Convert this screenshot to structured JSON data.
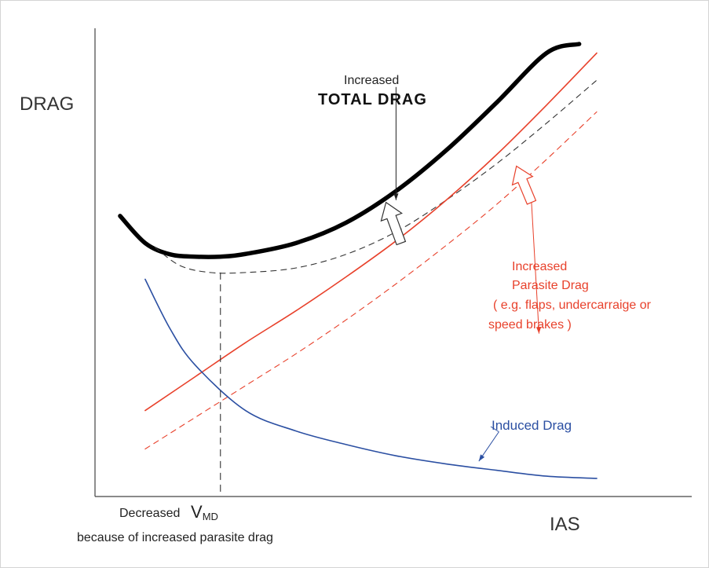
{
  "chart_data": {
    "type": "line",
    "title": "",
    "xlabel": "IAS",
    "ylabel": "DRAG",
    "xlim": [
      0,
      10
    ],
    "ylim": [
      0,
      10
    ],
    "grid": false,
    "series": [
      {
        "name": "Total Drag (increased)",
        "style": "thick-solid",
        "color": "#000000",
        "x": [
          0.5,
          1.0,
          1.5,
          2.0,
          2.5,
          3.0,
          4.0,
          5.0,
          6.0,
          7.0,
          8.0,
          9.0,
          9.65
        ],
        "y": [
          6.2,
          5.6,
          5.35,
          5.3,
          5.3,
          5.36,
          5.6,
          6.05,
          6.75,
          7.65,
          8.7,
          9.8,
          10.0
        ]
      },
      {
        "name": "Total Drag (original)",
        "style": "dashed",
        "color": "#333333",
        "x": [
          1.2,
          1.7,
          2.3,
          3.0,
          4.0,
          5.0,
          6.0,
          7.0,
          8.0,
          9.0,
          10.0
        ],
        "y": [
          5.5,
          5.1,
          4.95,
          4.95,
          5.05,
          5.35,
          5.85,
          6.55,
          7.35,
          8.25,
          9.2
        ]
      },
      {
        "name": "Parasite Drag (increased)",
        "style": "solid",
        "color": "#e8412b",
        "x": [
          1.0,
          2.0,
          3.0,
          4.0,
          5.0,
          6.0,
          7.0,
          8.0,
          9.0,
          10.0
        ],
        "y": [
          1.9,
          2.65,
          3.4,
          4.1,
          4.85,
          5.65,
          6.55,
          7.55,
          8.65,
          9.8
        ]
      },
      {
        "name": "Parasite Drag (original)",
        "style": "dashed",
        "color": "#e8412b",
        "x": [
          1.0,
          2.0,
          3.0,
          4.0,
          5.0,
          6.0,
          7.0,
          8.0,
          9.0,
          10.0
        ],
        "y": [
          1.05,
          1.75,
          2.45,
          3.15,
          3.9,
          4.7,
          5.55,
          6.45,
          7.45,
          8.5
        ]
      },
      {
        "name": "Induced Drag",
        "style": "solid",
        "color": "#2b4fa2",
        "x": [
          1.0,
          1.5,
          2.0,
          3.0,
          4.0,
          5.0,
          6.0,
          7.0,
          8.0,
          9.0,
          10.0
        ],
        "y": [
          4.8,
          3.7,
          2.9,
          1.9,
          1.45,
          1.15,
          0.9,
          0.72,
          0.58,
          0.45,
          0.4
        ]
      }
    ],
    "vmd_x": 2.5,
    "vmd_bottom": 0,
    "vmd_top": 4.95,
    "arrows": [
      {
        "name": "total-drag-increase-arrow",
        "from": [
          6.1,
          5.6
        ],
        "to": [
          5.8,
          6.5
        ]
      },
      {
        "name": "parasite-drag-increase-arrow",
        "from": [
          8.7,
          6.5
        ],
        "to": [
          8.4,
          7.3
        ]
      }
    ],
    "leaders": [
      {
        "name": "total-drag-leader",
        "from": [
          6.0,
          9.05
        ],
        "to": [
          6.0,
          6.55
        ]
      },
      {
        "name": "parasite-drag-leader",
        "from": [
          8.7,
          6.5
        ],
        "to": [
          8.85,
          3.6
        ]
      },
      {
        "name": "induced-drag-leader",
        "from": [
          8.05,
          1.43
        ],
        "to": [
          7.65,
          0.78
        ]
      }
    ],
    "annotations": {
      "total_drag_line1": "Increased",
      "total_drag_line2": "TOTAL  DRAG",
      "parasite_line1": "Increased",
      "parasite_line2": "Parasite  Drag",
      "parasite_line3": "( e.g. flaps, undercarraige or",
      "parasite_line4": "speed brakes )",
      "induced": "Induced  Drag",
      "vmd_prefix": "Decreased",
      "vmd_symbol": "V",
      "vmd_subscript": "MD",
      "vmd_note": "because of increased parasite drag"
    }
  }
}
